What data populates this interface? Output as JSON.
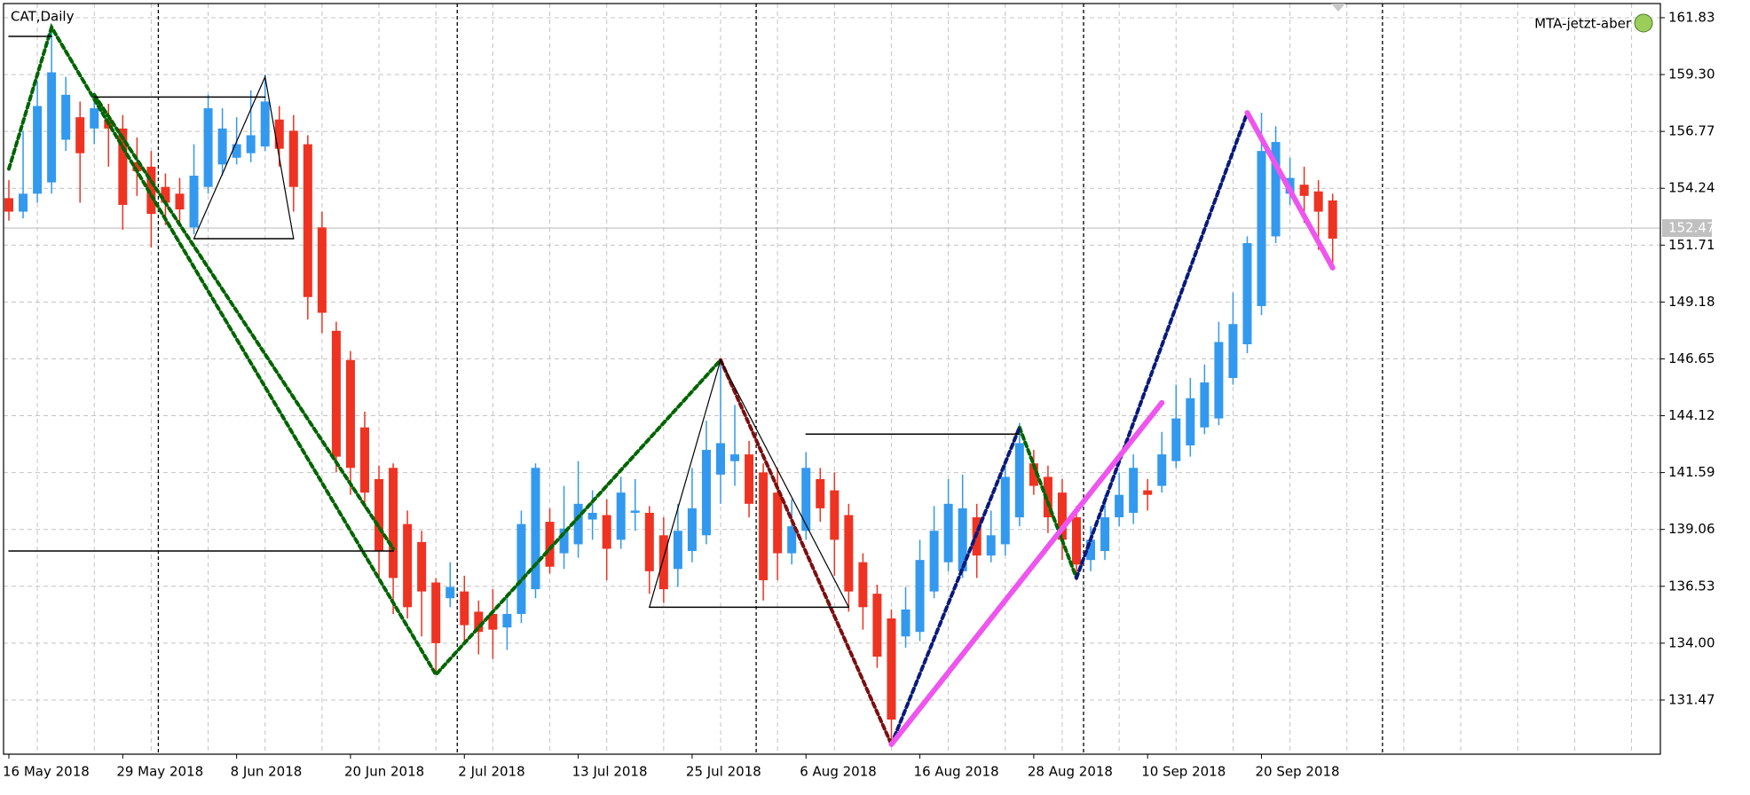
{
  "chart_data": {
    "type": "candlestick",
    "title": "CAT,Daily",
    "indicator": "MTA-jetzt-aber",
    "categories": [
      "16 May 2018",
      null,
      null,
      null,
      null,
      null,
      null,
      null,
      "29 May 2018",
      null,
      null,
      null,
      null,
      null,
      null,
      null,
      "8 Jun 2018",
      null,
      null,
      null,
      null,
      null,
      null,
      null,
      "20 Jun 2018",
      null,
      null,
      null,
      null,
      null,
      null,
      null,
      "2 Jul 2018",
      null,
      null,
      null,
      null,
      null,
      null,
      null,
      "13 Jul 2018",
      null,
      null,
      null,
      null,
      null,
      null,
      null,
      "25 Jul 2018",
      null,
      null,
      null,
      null,
      null,
      null,
      null,
      "6 Aug 2018",
      null,
      null,
      null,
      null,
      null,
      null,
      null,
      "16 Aug 2018",
      null,
      null,
      null,
      null,
      null,
      null,
      null,
      "28 Aug 2018",
      null,
      null,
      null,
      null,
      null,
      null,
      null,
      "10 Sep 2018",
      null,
      null,
      null,
      null,
      null,
      null,
      null,
      "20 Sep 2018",
      null,
      null,
      null,
      null,
      null
    ],
    "open": [
      153.8,
      153.2,
      154.0,
      154.5,
      156.4,
      157.4,
      156.9,
      157.3,
      156.9,
      155.4,
      155.2,
      154.3,
      154.0,
      152.5,
      154.3,
      155.3,
      155.6,
      155.8,
      156.1,
      157.3,
      156.8,
      156.2,
      152.5,
      147.9,
      146.6,
      143.6,
      141.3,
      141.8,
      139.3,
      138.5,
      136.7,
      136.0,
      136.3,
      135.4,
      135.3,
      134.7,
      135.3,
      136.4,
      139.4,
      138.0,
      138.4,
      139.5,
      139.7,
      138.6,
      139.8,
      139.8,
      138.8,
      137.3,
      138.1,
      138.8,
      141.5,
      142.1,
      142.4,
      141.6,
      140.7,
      138.0,
      139.0,
      141.3,
      140.8,
      139.7,
      137.6,
      136.2,
      135.1,
      134.3,
      134.5,
      136.3,
      137.6,
      137.2,
      139.6,
      137.9,
      138.4,
      139.6,
      142.0,
      141.4,
      140.7,
      139.6,
      137.7,
      138.1,
      139.6,
      139.8,
      140.8,
      141.0,
      142.1,
      142.8,
      143.6,
      144.0,
      145.8,
      147.3,
      149.0,
      152.1,
      154.0,
      154.4,
      154.1,
      153.7
    ],
    "high": [
      154.6,
      156.8,
      159.0,
      161.4,
      159.2,
      158.1,
      158.5,
      158.0,
      157.5,
      156.5,
      155.9,
      154.9,
      154.7,
      156.2,
      158.4,
      157.8,
      157.4,
      158.6,
      159.3,
      157.9,
      157.5,
      156.6,
      153.2,
      148.3,
      147.0,
      144.3,
      141.9,
      142.0,
      139.9,
      139.0,
      136.9,
      137.6,
      137.0,
      135.9,
      136.4,
      136.2,
      139.9,
      142.0,
      140.0,
      141.0,
      142.1,
      140.8,
      140.4,
      141.4,
      141.3,
      140.1,
      139.6,
      140.2,
      141.8,
      143.9,
      146.6,
      144.6,
      143.0,
      142.0,
      141.8,
      140.4,
      142.5,
      141.8,
      141.6,
      140.2,
      138.0,
      136.6,
      135.5,
      136.5,
      138.6,
      140.1,
      141.3,
      141.5,
      140.2,
      139.9,
      142.2,
      143.8,
      142.6,
      141.9,
      141.3,
      140.1,
      139.2,
      140.6,
      141.6,
      142.4,
      141.3,
      143.4,
      145.5,
      145.8,
      146.4,
      148.3,
      149.6,
      152.1,
      157.6,
      157.0,
      155.6,
      155.2,
      154.6,
      154.0
    ],
    "low": [
      152.8,
      152.9,
      153.6,
      154.0,
      155.9,
      153.6,
      156.2,
      155.2,
      152.4,
      153.9,
      151.6,
      152.6,
      152.7,
      152.2,
      154.0,
      154.8,
      155.3,
      155.4,
      155.9,
      155.2,
      153.2,
      148.4,
      147.8,
      141.6,
      140.6,
      140.0,
      136.8,
      135.3,
      135.1,
      134.3,
      132.6,
      135.6,
      134.0,
      133.5,
      133.3,
      133.7,
      134.9,
      136.0,
      137.1,
      137.3,
      137.8,
      138.6,
      136.8,
      138.2,
      139.0,
      136.2,
      135.8,
      136.5,
      137.6,
      138.4,
      140.2,
      141.0,
      139.6,
      135.9,
      136.8,
      137.5,
      138.6,
      139.4,
      137.0,
      135.4,
      134.6,
      132.9,
      129.5,
      133.8,
      134.1,
      136.0,
      137.2,
      136.9,
      136.9,
      137.6,
      137.9,
      139.2,
      140.6,
      138.9,
      137.7,
      136.8,
      137.2,
      137.7,
      139.2,
      139.3,
      139.9,
      140.7,
      141.8,
      142.3,
      143.3,
      143.7,
      145.5,
      146.9,
      148.6,
      151.8,
      153.5,
      152.7,
      151.5,
      150.7
    ],
    "close": [
      153.2,
      154.0,
      157.9,
      159.4,
      158.4,
      155.8,
      157.8,
      156.9,
      153.5,
      155.0,
      153.1,
      153.6,
      153.3,
      154.8,
      157.8,
      156.9,
      156.2,
      156.6,
      158.1,
      156.0,
      154.3,
      149.4,
      148.7,
      142.3,
      141.8,
      140.7,
      138.1,
      136.9,
      135.6,
      136.3,
      134.0,
      136.5,
      134.8,
      134.5,
      134.6,
      135.3,
      139.3,
      141.8,
      137.4,
      139.1,
      140.2,
      139.8,
      138.2,
      140.7,
      139.9,
      137.2,
      136.4,
      139.0,
      140.0,
      142.6,
      142.9,
      142.4,
      140.2,
      136.8,
      138.0,
      139.2,
      141.8,
      140.0,
      138.6,
      136.3,
      135.6,
      133.4,
      130.6,
      135.5,
      137.7,
      139.0,
      140.2,
      140.0,
      137.9,
      138.8,
      141.4,
      142.9,
      141.0,
      139.6,
      138.6,
      137.5,
      138.6,
      139.6,
      140.6,
      141.8,
      140.6,
      142.4,
      144.0,
      144.9,
      145.6,
      147.4,
      148.2,
      151.8,
      155.9,
      156.3,
      154.7,
      153.9,
      153.2,
      152.0
    ],
    "up_color": "#3399ee",
    "down_color": "#ee3322",
    "current_price": 152.47,
    "ylim": [
      129.06,
      162.46
    ],
    "yticks": [
      161.83,
      {
        "value": 159.3,
        "label": "159.30"
      },
      156.77,
      154.24,
      151.71,
      149.18,
      146.65,
      144.12,
      141.59,
      139.06,
      136.53,
      {
        "value": 134,
        "label": "134.00"
      },
      131.47
    ],
    "grid": true,
    "overlays": [
      {
        "color": "#006400",
        "style": "dashed",
        "width": 4,
        "x": [
          0,
          3,
          30,
          50
        ],
        "values": [
          155.1,
          161.4,
          132.6,
          146.6
        ]
      },
      {
        "color": "#006400",
        "style": "dashed",
        "width": 4,
        "x": [
          6,
          27
        ],
        "values": [
          158.4,
          138.2
        ]
      },
      {
        "color": "#006400",
        "style": "dashed",
        "width": 4,
        "x": [
          71,
          75
        ],
        "values": [
          143.6,
          136.9
        ]
      },
      {
        "color": "#7a1010",
        "style": "dashed",
        "width": 4,
        "x": [
          50,
          62
        ],
        "values": [
          146.6,
          129.5
        ]
      },
      {
        "color": "#0a1a7a",
        "style": "dashed",
        "width": 4,
        "x": [
          62,
          71
        ],
        "values": [
          129.5,
          143.6
        ]
      },
      {
        "color": "#0a1a7a",
        "style": "dashed",
        "width": 4,
        "x": [
          75,
          87
        ],
        "values": [
          136.9,
          157.6
        ]
      },
      {
        "color": "#ee55ee",
        "style": "solid",
        "width": 6,
        "x": [
          62,
          81
        ],
        "values": [
          129.5,
          144.7
        ]
      },
      {
        "color": "#ee55ee",
        "style": "solid",
        "width": 6,
        "x": [
          87,
          93
        ],
        "values": [
          157.6,
          150.7
        ]
      },
      {
        "color": "#000000",
        "style": "solid",
        "width": 1.5,
        "x": [
          0,
          3
        ],
        "values": [
          161.0,
          161.0
        ]
      },
      {
        "color": "#000000",
        "style": "solid",
        "width": 1.5,
        "x": [
          0,
          27
        ],
        "values": [
          138.1,
          138.1
        ]
      },
      {
        "color": "#000000",
        "style": "solid",
        "width": 1.5,
        "x": [
          6,
          18
        ],
        "values": [
          158.3,
          158.3
        ]
      },
      {
        "color": "#000000",
        "style": "solid",
        "width": 1.5,
        "x": [
          13,
          20
        ],
        "values": [
          152.0,
          152.0
        ]
      },
      {
        "color": "#000000",
        "style": "solid",
        "width": 1.5,
        "x": [
          45,
          59
        ],
        "values": [
          135.6,
          135.6
        ]
      },
      {
        "color": "#000000",
        "style": "solid",
        "width": 1.5,
        "x": [
          56,
          71
        ],
        "values": [
          143.3,
          143.3
        ]
      },
      {
        "color": "#000000",
        "style": "solid",
        "width": 1.2,
        "x": [
          45,
          50,
          59
        ],
        "values": [
          135.6,
          146.6,
          135.6
        ]
      },
      {
        "color": "#000000",
        "style": "solid",
        "width": 1.2,
        "x": [
          13,
          18,
          20
        ],
        "values": [
          152.0,
          159.2,
          152.0
        ]
      }
    ]
  }
}
